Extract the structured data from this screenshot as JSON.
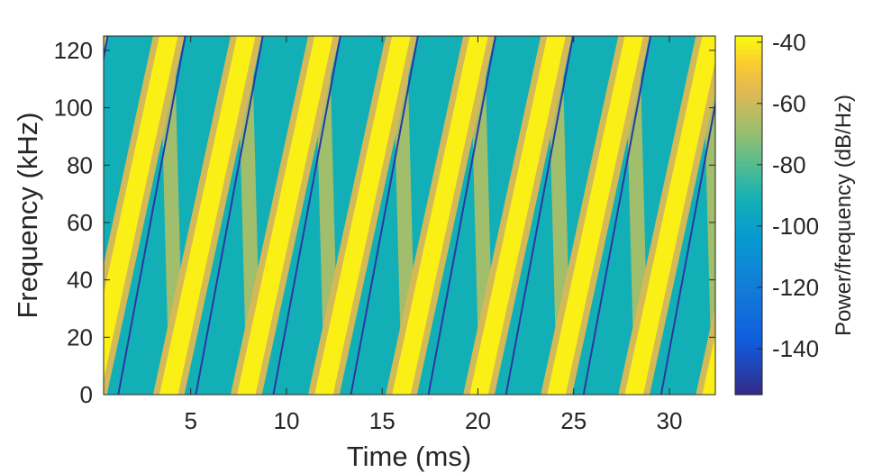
{
  "chart_data": {
    "type": "heatmap",
    "title": "",
    "xlabel": "Time (ms)",
    "ylabel": "Frequency (kHz)",
    "colorbar_label": "Power/frequency (dB/Hz)",
    "xlim": [
      0.45,
      32.4
    ],
    "ylim": [
      0,
      125
    ],
    "clim": [
      -155,
      -38
    ],
    "xticks": [
      5,
      10,
      15,
      20,
      25,
      30
    ],
    "xtick_labels": [
      "5",
      "10",
      "15",
      "20",
      "25",
      "30"
    ],
    "yticks": [
      0,
      20,
      40,
      60,
      80,
      100,
      120
    ],
    "ytick_labels": [
      "0",
      "20",
      "40",
      "60",
      "80",
      "100",
      "120"
    ],
    "cticks": [
      -140,
      -120,
      -100,
      -80,
      -60,
      -40
    ],
    "ctick_labels": [
      "-140",
      "-120",
      "-100",
      "-80",
      "-60",
      "-40"
    ],
    "colormap": "parula",
    "grid": false,
    "signal": {
      "kind": "periodic linear frequency sweep (sawtooth chirp)",
      "sweep_period_ms": 4.05,
      "sweep_start_ms": -0.2,
      "freq_range_khz": [
        0,
        125
      ],
      "peak_power_db": -40,
      "alias_power_db": -68,
      "background_power_db": -92,
      "null_power_db": -150
    }
  }
}
